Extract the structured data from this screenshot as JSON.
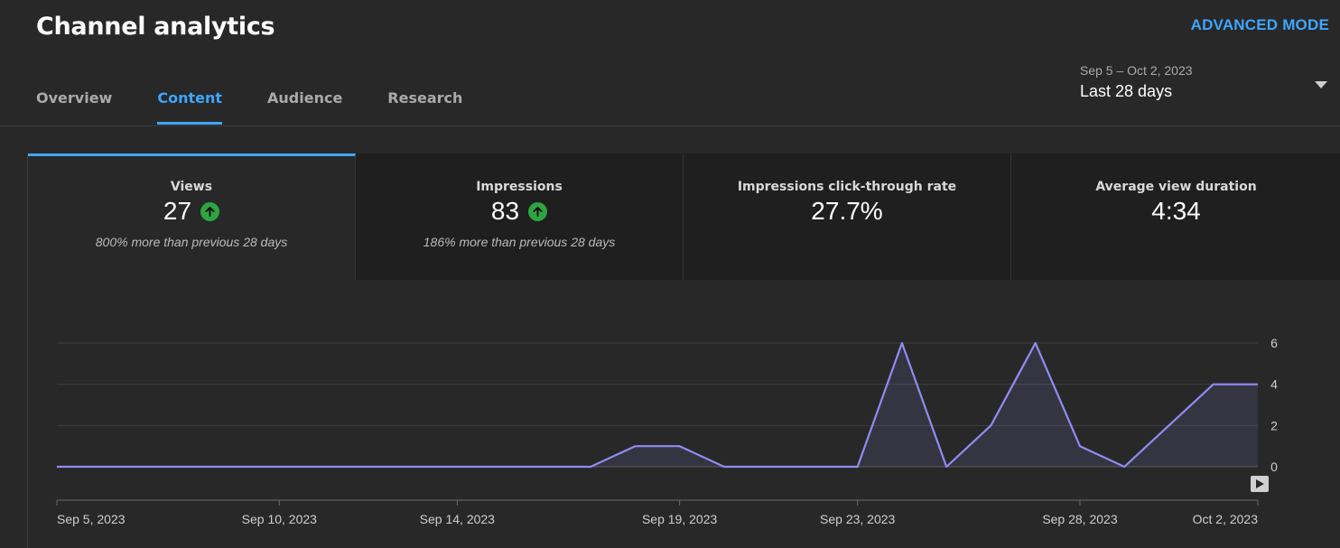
{
  "header": {
    "title": "Channel analytics",
    "advanced_mode": "ADVANCED MODE"
  },
  "tabs": [
    {
      "label": "Overview",
      "active": false
    },
    {
      "label": "Content",
      "active": true
    },
    {
      "label": "Audience",
      "active": false
    },
    {
      "label": "Research",
      "active": false
    }
  ],
  "date_range": {
    "dates": "Sep 5 – Oct 2, 2023",
    "label": "Last 28 days",
    "icon": "caret-down-icon"
  },
  "metrics": [
    {
      "label": "Views",
      "value": "27",
      "trend": "up",
      "note": "800% more than previous 28 days"
    },
    {
      "label": "Impressions",
      "value": "83",
      "trend": "up",
      "note": "186% more than previous 28 days"
    },
    {
      "label": "Impressions click-through rate",
      "value": "27.7%"
    },
    {
      "label": "Average view duration",
      "value": "4:34"
    }
  ],
  "colors": {
    "accent": "#3ea6ff",
    "trend_up": "#2ba640",
    "series_line": "#8f8cf2"
  },
  "chart_data": {
    "type": "area",
    "series": [
      {
        "values": [
          0,
          0,
          0,
          0,
          0,
          0,
          0,
          0,
          0,
          0,
          0,
          0,
          0,
          1,
          1,
          0,
          0,
          0,
          0,
          6,
          0,
          2,
          6,
          1,
          0,
          2,
          4,
          4
        ]
      }
    ],
    "x": [
      "Sep 5",
      "Sep 6",
      "Sep 7",
      "Sep 8",
      "Sep 9",
      "Sep 10",
      "Sep 11",
      "Sep 12",
      "Sep 13",
      "Sep 14",
      "Sep 15",
      "Sep 16",
      "Sep 17",
      "Sep 18",
      "Sep 19",
      "Sep 20",
      "Sep 21",
      "Sep 22",
      "Sep 23",
      "Sep 24",
      "Sep 25",
      "Sep 26",
      "Sep 27",
      "Sep 28",
      "Sep 29",
      "Sep 30",
      "Oct 1",
      "Oct 2"
    ],
    "x_tick_labels": [
      "Sep 5, 2023",
      "Sep 10, 2023",
      "Sep 14, 2023",
      "Sep 19, 2023",
      "Sep 23, 2023",
      "Sep 28, 2023",
      "Oct 2, 2023"
    ],
    "x_tick_indices": [
      0,
      5,
      9,
      14,
      18,
      23,
      27
    ],
    "y_ticks": [
      0,
      2,
      4,
      6
    ],
    "ylim": [
      0,
      6
    ],
    "grid": true,
    "y_axis_side": "right"
  }
}
